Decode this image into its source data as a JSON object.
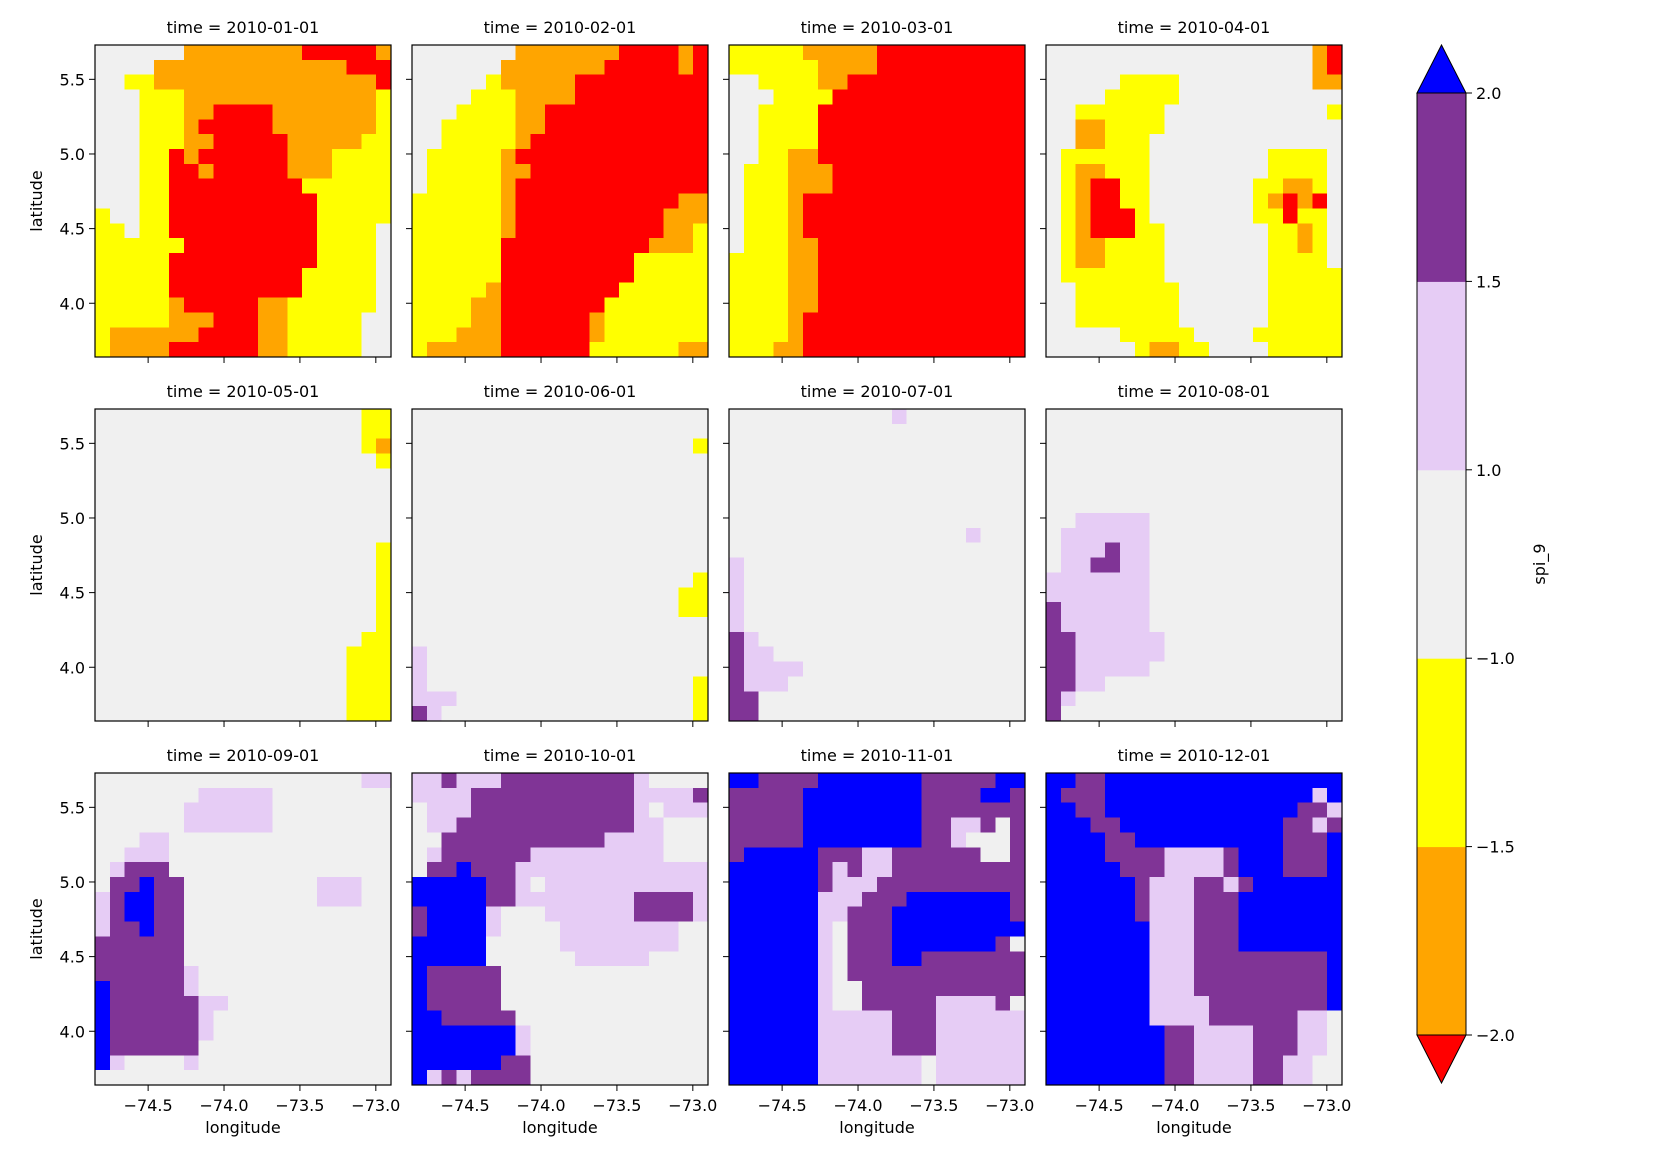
{
  "chart_data": {
    "type": "heatmap",
    "facet_by": "time",
    "panel_titles": [
      "time = 2010-01-01",
      "time = 2010-02-01",
      "time = 2010-03-01",
      "time = 2010-04-01",
      "time = 2010-05-01",
      "time = 2010-06-01",
      "time = 2010-07-01",
      "time = 2010-08-01",
      "time = 2010-09-01",
      "time = 2010-10-01",
      "time = 2010-11-01",
      "time = 2010-12-01"
    ],
    "xlabel": "longitude",
    "ylabel": "latitude",
    "xlim": [
      -74.85,
      -72.9
    ],
    "ylim": [
      3.64,
      5.73
    ],
    "xticks": [
      -74.5,
      -74.0,
      -73.5,
      -73.0
    ],
    "xtick_labels": [
      "−74.5",
      "−74.0",
      "−73.5",
      "−73.0"
    ],
    "yticks": [
      4.0,
      4.5,
      5.0,
      5.5
    ],
    "ytick_labels": [
      "4.0",
      "4.5",
      "5.0",
      "5.5"
    ],
    "grid": false,
    "colorbar": {
      "label": "spi_9",
      "boundaries": [
        -2.0,
        -1.5,
        -1.0,
        1.0,
        1.5,
        2.0
      ],
      "tick_labels": [
        "−2.0",
        "−1.5",
        "−1.0",
        "1.0",
        "1.5",
        "2.0"
      ],
      "colors": [
        "#ffa500",
        "#ffff00",
        "#f0f0f0",
        "#e6ccf5",
        "#803496"
      ],
      "extend_low_color": "#ff0000",
      "extend_high_color": "#0000ff"
    },
    "class_legend": {
      "R": "< -2.0",
      "O": "-2.0 to -1.5",
      "Y": "-1.5 to -1.0",
      "G": "-1.0 to 1.0",
      "L": "1.0 to 1.5",
      "P": "1.5 to 2.0",
      "B": "> 2.0"
    },
    "class_colors": {
      "R": "#ff0000",
      "O": "#ffa500",
      "Y": "#ffff00",
      "G": "#f0f0f0",
      "L": "#e6ccf5",
      "P": "#803496",
      "B": "#0000ff"
    },
    "grid_rows_north_to_south": 21,
    "grid_cols_west_to_east": 20,
    "panels": [
      {
        "time": "2010-01-01",
        "rows": [
          "GGGGGGOOOOOOOORRRRRO",
          "GGGGOOOOOOOOOOOOORRR",
          "GGYYOOOOOOOOOOOOOOOR",
          "GGGYYYOOOOOOOOOOOOOY",
          "GGGYYYOORRRROOOOOOOY",
          "GGGYYYORRRRROOOOOOOY",
          "GGGYYYOORRRRROOOOOYY",
          "GGGYYRORRRRRROOOYYYY",
          "GGGYYRRORRRRROOOYYYY",
          "GGGYYRRRRRRRRRYYYYYY",
          "GGGYYRRRRRRRRRRYYYYY",
          "YGGYYRRRRRRRRRRYYYYY",
          "YYGYYRRRRRRRRRRYYYYG",
          "YYYYYYRRRRRRRRRYYYYG",
          "YYYYYRRRRRRRRRRYYYYG",
          "YYYYYRRRRRRRRRYYYYYG",
          "YYYYYRRRRRRRRRYYYYYG",
          "YYYYYORRRRROOYYYYYYG",
          "YYYYYOOORRROOYYYYYGG",
          "YOOOOOORRRROOYYYYYGG",
          "YOOOORRRRRROOYYYYYGG"
        ]
      },
      {
        "time": "2010-02-01",
        "rows": [
          "GGGGGGGOOOOOOORRRROR",
          "GGGGGGOOOOOOORRRRROR",
          "GGGGGYOOOOORRRRRRRRR",
          "GGGGYYYOOOORRRRRRRRR",
          "GGGYYYYOORRRRRRRRRRR",
          "GGYYYYYOORRRRRRRRRRR",
          "GGYYYYYORRRRRRRRRRRR",
          "GYYYYYORRRRRRRRRRRRR",
          "GYYYYYOORRRRRRRRRRRR",
          "GYYYYYORRRRRRRRRRRRR",
          "YYYYYYORRRRRRRRRRROO",
          "YYYYYYORRRRRRRRRROOO",
          "YYYYYYORRRRRRRRRROOY",
          "YYYYYYRRRRRRRRRROOOY",
          "YYYYYYRRRRRRRRRYYYYY",
          "YYYYYYRRRRRRRRRYYYYY",
          "YYYYYORRRRRRRRYYYYYY",
          "YYYYOORRRRRRRYYYYYYY",
          "YYYYOORRRRRROYYYYYYY",
          "YYYOOORRRRRROYYYYYYY",
          "YOOOOORRRRRRYYYYYYOO"
        ]
      },
      {
        "time": "2010-03-01",
        "rows": [
          "YYYYYOOOOORRRRRRRRRR",
          "YYYYYYOOOORRRRRRRRRR",
          "GGYYYYOORRRRRRRRRRRR",
          "GGGYYYYRRRRRRRRRRRRR",
          "GGYYYYRRRRRRRRRRRRRR",
          "GGYYYYRRRRRRRRRRRRRR",
          "GGYYYYRRRRRRRRRRRRRR",
          "GGYYOORRRRRRRRRRRRRR",
          "GYYYOOORRRRRRRRRRRRR",
          "GYYYOOORRRRRRRRRRRRR",
          "GYYYORRRRRRRRRRRRRRR",
          "GYYYORRRRRRRRRRRRRRR",
          "GYYYORRRRRRRRRRRRRRR",
          "GYYYOORRRRRRRRRRRRRR",
          "YYYYOORRRRRRRRRRRRRR",
          "YYYYOORRRRRRRRRRRRRR",
          "YYYYOORRRRRRRRRRRRRR",
          "YYYYOORRRRRRRRRRRRRR",
          "YYYYORRRRRRRRRRRRRRR",
          "YYYYORRRRRRRRRRRRRRR",
          "YYYOORRRRRRRRRRRRRRR"
        ]
      },
      {
        "time": "2010-04-01",
        "rows": [
          "GGGGGGGGGGGGGGGGGGOR",
          "GGGGGGGGGGGGGGGGGGOR",
          "GGGGGYYYYGGGGGGGGGOO",
          "GGGGYYYYYGGGGGGGGGGG",
          "GGYYYYYYGGGGGGGGGGGY",
          "GGOOYYYYGGGGGGGGGGGG",
          "GGOOYYYGGGGGGGGGGGGG",
          "GYYYYYYGGGGGGGGYYYYG",
          "GYOOYYYGGGGGGGGYYYYG",
          "GYORRYYGGGGGGGYYOOYG",
          "GYORRYYGGGGGGGYORORG",
          "GYORRRYGGGGGGGYYRYYG",
          "GYORRRYYGGGGGGGYYOYG",
          "GYOOYYYYGGGGGGGYYOYG",
          "GYOOYYYYGGGGGGGYYYYG",
          "GYYYYYYYGGGGGGGYYYYY",
          "GGYYYYYYYGGGGGGYYYYY",
          "GGYYYYYYYGGGGGGYYYYY",
          "GGYYYYYYYGGGGGGYYYYY",
          "GGGGGYYYYYGGGGYYYYYY",
          "GGGGGGYOOYYGGGGYYYYY"
        ]
      },
      {
        "time": "2010-05-01",
        "rows": [
          "GGGGGGGGGGGGGGGGGGYY",
          "GGGGGGGGGGGGGGGGGGYY",
          "GGGGGGGGGGGGGGGGGGYO",
          "GGGGGGGGGGGGGGGGGGGY",
          "GGGGGGGGGGGGGGGGGGGG",
          "GGGGGGGGGGGGGGGGGGGG",
          "GGGGGGGGGGGGGGGGGGGG",
          "GGGGGGGGGGGGGGGGGGGG",
          "GGGGGGGGGGGGGGGGGGGG",
          "GGGGGGGGGGGGGGGGGGGY",
          "GGGGGGGGGGGGGGGGGGGY",
          "GGGGGGGGGGGGGGGGGGGY",
          "GGGGGGGGGGGGGGGGGGGY",
          "GGGGGGGGGGGGGGGGGGGY",
          "GGGGGGGGGGGGGGGGGGGY",
          "GGGGGGGGGGGGGGGGGGYY",
          "GGGGGGGGGGGGGGGGGYYY",
          "GGGGGGGGGGGGGGGGGYYY",
          "GGGGGGGGGGGGGGGGGYYY",
          "GGGGGGGGGGGGGGGGGYYY",
          "GGGGGGGGGGGGGGGGGYYY"
        ]
      },
      {
        "time": "2010-06-01",
        "rows": [
          "GGGGGGGGGGGGGGGGGGGG",
          "GGGGGGGGGGGGGGGGGGGG",
          "GGGGGGGGGGGGGGGGGGGY",
          "GGGGGGGGGGGGGGGGGGGG",
          "GGGGGGGGGGGGGGGGGGGG",
          "GGGGGGGGGGGGGGGGGGGG",
          "GGGGGGGGGGGGGGGGGGGG",
          "GGGGGGGGGGGGGGGGGGGG",
          "GGGGGGGGGGGGGGGGGGGG",
          "GGGGGGGGGGGGGGGGGGGG",
          "GGGGGGGGGGGGGGGGGGGG",
          "GGGGGGGGGGGGGGGGGGGY",
          "GGGGGGGGGGGGGGGGGGYY",
          "GGGGGGGGGGGGGGGGGGYY",
          "GGGGGGGGGGGGGGGGGGGG",
          "GGGGGGGGGGGGGGGGGGGG",
          "LGGGGGGGGGGGGGGGGGGG",
          "LGGGGGGGGGGGGGGGGGGG",
          "LGGGGGGGGGGGGGGGGGGY",
          "LLLGGGGGGGGGGGGGGGGY",
          "PLGGGGGGGGGGGGGGGGGY"
        ]
      },
      {
        "time": "2010-07-01",
        "rows": [
          "GGGGGGGGGGGLGGGGGGGG",
          "GGGGGGGGGGGGGGGGGGGG",
          "GGGGGGGGGGGGGGGGGGGG",
          "GGGGGGGGGGGGGGGGGGGG",
          "GGGGGGGGGGGGGGGGGGGG",
          "GGGGGGGGGGGGGGGGGGGG",
          "GGGGGGGGGGGGGGGGGGGG",
          "GGGGGGGGGGGGGGGGGGGG",
          "GGGGGGGGGGGGGGGGLGGG",
          "GGGGGGGGGGGGGGGGGGGG",
          "LGGGGGGGGGGGGGGGGGGG",
          "LGGGGGGGGGGGGGGGGGGG",
          "LGGGGGGGGGGGGGGGGGGG",
          "LGGGGGGGGGGGGGGGGGGG",
          "LGGGGGGGGGGGGGGGGGGG",
          "PLGGGGGGGGGGGGGGGGGG",
          "PLLGGGGGGGGGGGGGGGGG",
          "PLLLLGGGGGGGGGGGGGGG",
          "PLLLGGGGGGGGGGGGGGGG",
          "PPGGGGGGGGGGGGGGGGGG",
          "PPGGGGGGGGGGGGGGGGGG"
        ]
      },
      {
        "time": "2010-08-01",
        "rows": [
          "GGGGGGGGGGGGGGGGGGGG",
          "GGGGGGGGGGGGGGGGGGGG",
          "GGGGGGGGGGGGGGGGGGGG",
          "GGGGGGGGGGGGGGGGGGGG",
          "GGGGGGGGGGGGGGGGGGGG",
          "GGGGGGGGGGGGGGGGGGGG",
          "GGGGGGGGGGGGGGGGGGGG",
          "GGLLLLLGGGGGGGGGGGGG",
          "GLLLLLLGGGGGGGGGGGGG",
          "GLLLPLLGGGGGGGGGGGGG",
          "GLLPPLLGGGGGGGGGGGGG",
          "LLLLLLLGGGGGGGGGGGGG",
          "LLLLLLLGGGGGGGGGGGGG",
          "PLLLLLLGGGGGGGGGGGGG",
          "PLLLLLLGGGGGGGGGGGGG",
          "PPLLLLLLGGGGGGGGGGGG",
          "PPLLLLLLGGGGGGGGGGGG",
          "PPLLLLLGGGGGGGGGGGGG",
          "PPLLGGGGGGGGGGGGGGGG",
          "PLGGGGGGGGGGGGGGGGGG",
          "PGGGGGGGGGGGGGGGGGGG"
        ]
      },
      {
        "time": "2010-09-01",
        "rows": [
          "GGGGGGGGGGGGGGGGGGLL",
          "GGGGGGGLLLLLGGGGGGGG",
          "GGGGGGLLLLLLGGGGGGGG",
          "GGGGGGLLLLLLGGGGGGGG",
          "GGGLLGGGGGGGGGGGGGGG",
          "GGLLLGGGGGGGGGGGGGGG",
          "GLPPPGGGGGGGGGGGGGGG",
          "GPPBPPGGGGGGGGGLLLGG",
          "LPBBPPGGGGGGGGGLLLGG",
          "LPBBPPGGGGGGGGGGGGGG",
          "LPPBPPGGGGGGGGGGGGGG",
          "PPPPPPGGGGGGGGGGGGGG",
          "PPPPPPGGGGGGGGGGGGGG",
          "PPPPPPLGGGGGGGGGGGGG",
          "BPPPPPLGGGGGGGGGGGGG",
          "BPPPPPPLLGGGGGGGGGGG",
          "BPPPPPPLGGGGGGGGGGGG",
          "BPPPPPPLGGGGGGGGGGGG",
          "BPPPPPPGGGGGGGGGGGGG",
          "BLGGGGLGGGGGGGGGGGGG",
          "GGGGGGGGGGGGGGGGGGGG"
        ]
      },
      {
        "time": "2010-10-01",
        "rows": [
          "LLPLLLPPPPPPPPPLGGGG",
          "LLLLPPPPPPPPPPPLLLLP",
          "GLLLPPPPPPPPPPPLGLLL",
          "GLLPPPPPPPPPPPPLLGGG",
          "GGPPPPPPPPPPPLLLLGGG",
          "GLPPPPPPLLLLLLLLLGGG",
          "GPPBPPPLLLLLLLLLLLLL",
          "BBBBBPPLGLLLLLLLLLLL",
          "BBBBBPPLLLLLLLLPPPPL",
          "PBBBBLGGGLLLLLLPPPPL",
          "PBBBBLGGGGLLLLLLLLGG",
          "BBBBBGGGGGLLLLLLLLGG",
          "BBBBBGGGGGGLLLLLGGGG",
          "BPPPPPGGGGGGGGGGGGGG",
          "BPPPPPGGGGGGGGGGGGGG",
          "BPPPPPGGGGGGGGGGGGGG",
          "BBPPPPPGGGGGGGGGGGGG",
          "BBBBBBBLGGGGGGGGGGGG",
          "BBBBBBBLGGGGGGGGGGGG",
          "BBBBBBPPGGGGGGGGGGGG",
          "BLPLPPPPGGGGGGGGGGGG"
        ]
      },
      {
        "time": "2010-11-01",
        "rows": [
          "BBPPPPBBBBBBBPPPPPBB",
          "PPPPPBBBBBBBBPPPPBBP",
          "PPPPPBBBBBBBBPPPPPPP",
          "PPPPPBBBBBBBBPPLLPGP",
          "PPPPPBBBBBBBBPPLGGGP",
          "PBBBBBPPPLLPPPPPPGGP",
          "BBBBBBPLPLLPPPPPPPPP",
          "BBBBBBPLLLPPPPPPPPPP",
          "BBBBBBLLLPPPBBBBBBBP",
          "BBBBBBLLPPPBBBBBBBBP",
          "BBBBBBLGPPPBBBBBBBBB",
          "BBBBBBLGPPPBBBBBBBPG",
          "BBBBBBLGPPPBBPPPPPPP",
          "BBBBBBLGPPPPPPPPPPPP",
          "BBBBBBLGGPPPPPPPPPPP",
          "BBBBBBLGGPPPPPLLLLPG",
          "BBBBBBLLLLLPPPLLLLLL",
          "BBBBBBLLLLLPPPLLLLLL",
          "BBBBBBLLLLLPPPLLLLLL",
          "BBBBBBLLLLLLLGLLLLLL",
          "BBBBBBLLLLLLLGLLLLLL"
        ]
      },
      {
        "time": "2010-12-01",
        "rows": [
          "BBPPBBBBBBBBBBBBBBBB",
          "BPPPBBBBBBBBBBBBBBLB",
          "BBPPBBBBBBBBBBBBBPPL",
          "BBBPPBBBBBBBBBBBPPLP",
          "BBBBPPBBBBBBBBBBPPPB",
          "BBBBPPPPLLLLPBBBPPPB",
          "BBBBBPPPLLLLPBBBPPPB",
          "BBBBBBPLLLPPLPBBBBBB",
          "BBBBBBPLLLPPPBBBBBBB",
          "BBBBBBPLLLPPPBBBBBBB",
          "BBBBBBBLLLPPPBBBBBBB",
          "BBBBBBBLLLPPPBBBBBBB",
          "BBBBBBBLLLPPPPPPPPPB",
          "BBBBBBBLLLPPPPPPPPPB",
          "BBBBBBBLLLPPPPPPPPPB",
          "BBBBBBBLLLLPPPPPPPPB",
          "BBBBBBBLLLLPPPPPPLLG",
          "BBBBBBBBPPLLLLPPPLLG",
          "BBBBBBBBPPLLLLPPPLLG",
          "BBBBBBBBPPLLLLPPLLGG",
          "BBBBBBBBPPLLLLPPLLGG"
        ]
      }
    ]
  }
}
